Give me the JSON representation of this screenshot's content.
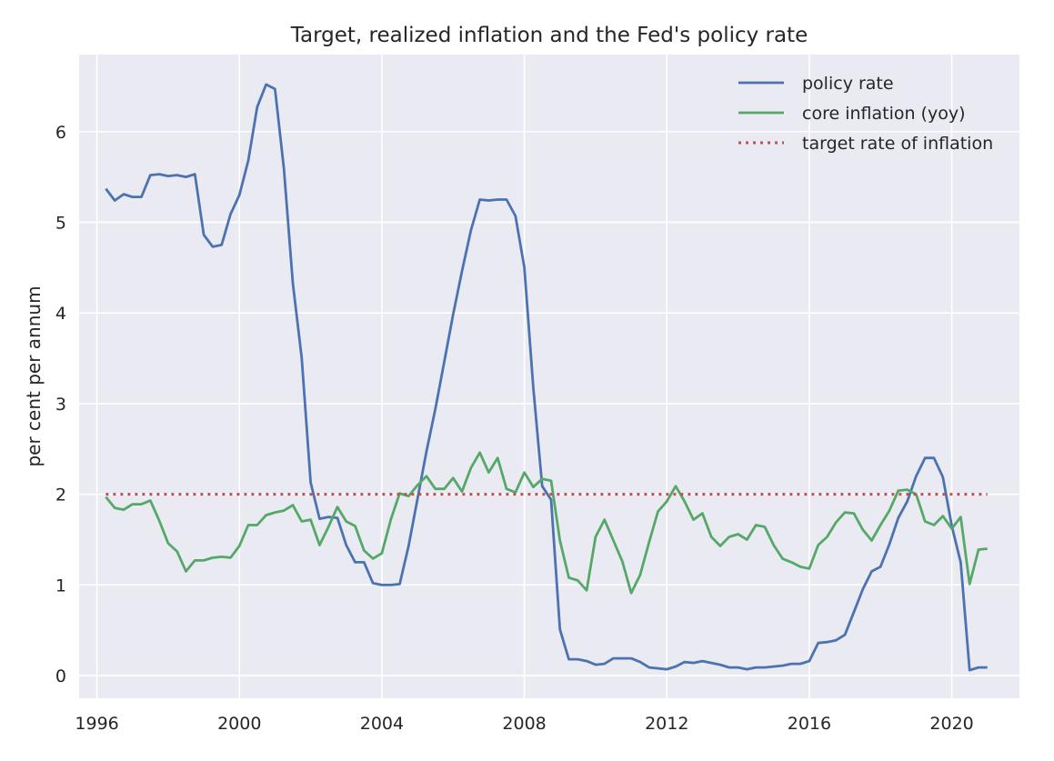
{
  "chart_data": {
    "type": "line",
    "title": "Target, realized inflation and the Fed's policy rate",
    "xlabel": "",
    "ylabel": "per cent per annum",
    "xlim": [
      1995.5,
      2021.9
    ],
    "ylim": [
      -0.25,
      6.85
    ],
    "xticks": [
      1996,
      2000,
      2004,
      2008,
      2012,
      2016,
      2020
    ],
    "yticks": [
      0,
      1,
      2,
      3,
      4,
      5,
      6
    ],
    "grid": true,
    "legend_position": "top-right",
    "colors": {
      "background": "#eaeaf2",
      "grid": "#ffffff",
      "policy": "#4c72b0",
      "core": "#55a868",
      "target": "#c44e52"
    },
    "series": [
      {
        "name": "policy rate",
        "style": "solid",
        "color": "#4c72b0",
        "points": [
          [
            1996.25,
            5.37
          ],
          [
            1996.5,
            5.24
          ],
          [
            1996.75,
            5.31
          ],
          [
            1997.0,
            5.28
          ],
          [
            1997.25,
            5.28
          ],
          [
            1997.5,
            5.52
          ],
          [
            1997.75,
            5.53
          ],
          [
            1998.0,
            5.51
          ],
          [
            1998.25,
            5.52
          ],
          [
            1998.5,
            5.5
          ],
          [
            1998.75,
            5.53
          ],
          [
            1999.0,
            4.86
          ],
          [
            1999.25,
            4.73
          ],
          [
            1999.5,
            4.75
          ],
          [
            1999.75,
            5.09
          ],
          [
            2000.0,
            5.3
          ],
          [
            2000.25,
            5.68
          ],
          [
            2000.5,
            6.27
          ],
          [
            2000.75,
            6.52
          ],
          [
            2001.0,
            6.47
          ],
          [
            2001.25,
            5.59
          ],
          [
            2001.5,
            4.33
          ],
          [
            2001.75,
            3.5
          ],
          [
            2002.0,
            2.13
          ],
          [
            2002.25,
            1.73
          ],
          [
            2002.5,
            1.75
          ],
          [
            2002.75,
            1.74
          ],
          [
            2003.0,
            1.44
          ],
          [
            2003.25,
            1.25
          ],
          [
            2003.5,
            1.25
          ],
          [
            2003.75,
            1.02
          ],
          [
            2004.0,
            1.0
          ],
          [
            2004.25,
            1.0
          ],
          [
            2004.5,
            1.01
          ],
          [
            2004.75,
            1.43
          ],
          [
            2005.0,
            1.95
          ],
          [
            2005.25,
            2.47
          ],
          [
            2005.5,
            2.94
          ],
          [
            2005.75,
            3.46
          ],
          [
            2006.0,
            3.98
          ],
          [
            2006.25,
            4.46
          ],
          [
            2006.5,
            4.91
          ],
          [
            2006.75,
            5.25
          ],
          [
            2007.0,
            5.24
          ],
          [
            2007.25,
            5.25
          ],
          [
            2007.5,
            5.25
          ],
          [
            2007.75,
            5.07
          ],
          [
            2008.0,
            4.5
          ],
          [
            2008.25,
            3.18
          ],
          [
            2008.5,
            2.09
          ],
          [
            2008.75,
            1.94
          ],
          [
            2009.0,
            0.51
          ],
          [
            2009.25,
            0.18
          ],
          [
            2009.5,
            0.18
          ],
          [
            2009.75,
            0.16
          ],
          [
            2010.0,
            0.12
          ],
          [
            2010.25,
            0.13
          ],
          [
            2010.5,
            0.19
          ],
          [
            2010.75,
            0.19
          ],
          [
            2011.0,
            0.19
          ],
          [
            2011.25,
            0.15
          ],
          [
            2011.5,
            0.09
          ],
          [
            2011.75,
            0.08
          ],
          [
            2012.0,
            0.07
          ],
          [
            2012.25,
            0.1
          ],
          [
            2012.5,
            0.15
          ],
          [
            2012.75,
            0.14
          ],
          [
            2013.0,
            0.16
          ],
          [
            2013.25,
            0.14
          ],
          [
            2013.5,
            0.12
          ],
          [
            2013.75,
            0.09
          ],
          [
            2014.0,
            0.09
          ],
          [
            2014.25,
            0.07
          ],
          [
            2014.5,
            0.09
          ],
          [
            2014.75,
            0.09
          ],
          [
            2015.0,
            0.1
          ],
          [
            2015.25,
            0.11
          ],
          [
            2015.5,
            0.13
          ],
          [
            2015.75,
            0.13
          ],
          [
            2016.0,
            0.16
          ],
          [
            2016.25,
            0.36
          ],
          [
            2016.5,
            0.37
          ],
          [
            2016.75,
            0.39
          ],
          [
            2017.0,
            0.45
          ],
          [
            2017.25,
            0.7
          ],
          [
            2017.5,
            0.95
          ],
          [
            2017.75,
            1.15
          ],
          [
            2018.0,
            1.2
          ],
          [
            2018.25,
            1.45
          ],
          [
            2018.5,
            1.74
          ],
          [
            2018.75,
            1.92
          ],
          [
            2019.0,
            2.2
          ],
          [
            2019.25,
            2.4
          ],
          [
            2019.5,
            2.4
          ],
          [
            2019.75,
            2.19
          ],
          [
            2020.0,
            1.65
          ],
          [
            2020.25,
            1.25
          ],
          [
            2020.5,
            0.06
          ],
          [
            2020.75,
            0.09
          ],
          [
            2021.0,
            0.09
          ]
        ]
      },
      {
        "name": "core inflation (yoy)",
        "style": "solid",
        "color": "#55a868",
        "points": [
          [
            1996.25,
            1.97
          ],
          [
            1996.5,
            1.85
          ],
          [
            1996.75,
            1.83
          ],
          [
            1997.0,
            1.89
          ],
          [
            1997.25,
            1.89
          ],
          [
            1997.5,
            1.93
          ],
          [
            1997.75,
            1.71
          ],
          [
            1998.0,
            1.46
          ],
          [
            1998.25,
            1.37
          ],
          [
            1998.5,
            1.15
          ],
          [
            1998.75,
            1.27
          ],
          [
            1999.0,
            1.27
          ],
          [
            1999.25,
            1.3
          ],
          [
            1999.5,
            1.31
          ],
          [
            1999.75,
            1.3
          ],
          [
            2000.0,
            1.43
          ],
          [
            2000.25,
            1.66
          ],
          [
            2000.5,
            1.66
          ],
          [
            2000.75,
            1.77
          ],
          [
            2001.0,
            1.8
          ],
          [
            2001.25,
            1.82
          ],
          [
            2001.5,
            1.88
          ],
          [
            2001.75,
            1.7
          ],
          [
            2002.0,
            1.72
          ],
          [
            2002.25,
            1.44
          ],
          [
            2002.5,
            1.64
          ],
          [
            2002.75,
            1.86
          ],
          [
            2003.0,
            1.7
          ],
          [
            2003.25,
            1.65
          ],
          [
            2003.5,
            1.38
          ],
          [
            2003.75,
            1.29
          ],
          [
            2004.0,
            1.35
          ],
          [
            2004.25,
            1.72
          ],
          [
            2004.5,
            2.01
          ],
          [
            2004.75,
            1.98
          ],
          [
            2005.0,
            2.1
          ],
          [
            2005.25,
            2.2
          ],
          [
            2005.5,
            2.06
          ],
          [
            2005.75,
            2.06
          ],
          [
            2006.0,
            2.18
          ],
          [
            2006.25,
            2.03
          ],
          [
            2006.5,
            2.29
          ],
          [
            2006.75,
            2.46
          ],
          [
            2007.0,
            2.24
          ],
          [
            2007.25,
            2.4
          ],
          [
            2007.5,
            2.06
          ],
          [
            2007.75,
            2.02
          ],
          [
            2008.0,
            2.24
          ],
          [
            2008.25,
            2.08
          ],
          [
            2008.5,
            2.17
          ],
          [
            2008.75,
            2.15
          ],
          [
            2009.0,
            1.49
          ],
          [
            2009.25,
            1.08
          ],
          [
            2009.5,
            1.05
          ],
          [
            2009.75,
            0.94
          ],
          [
            2010.0,
            1.53
          ],
          [
            2010.25,
            1.72
          ],
          [
            2010.5,
            1.49
          ],
          [
            2010.75,
            1.26
          ],
          [
            2011.0,
            0.91
          ],
          [
            2011.25,
            1.11
          ],
          [
            2011.5,
            1.47
          ],
          [
            2011.75,
            1.81
          ],
          [
            2012.0,
            1.92
          ],
          [
            2012.25,
            2.09
          ],
          [
            2012.5,
            1.92
          ],
          [
            2012.75,
            1.72
          ],
          [
            2013.0,
            1.79
          ],
          [
            2013.25,
            1.53
          ],
          [
            2013.5,
            1.43
          ],
          [
            2013.75,
            1.53
          ],
          [
            2014.0,
            1.56
          ],
          [
            2014.25,
            1.5
          ],
          [
            2014.5,
            1.66
          ],
          [
            2014.75,
            1.64
          ],
          [
            2015.0,
            1.44
          ],
          [
            2015.25,
            1.29
          ],
          [
            2015.5,
            1.25
          ],
          [
            2015.75,
            1.2
          ],
          [
            2016.0,
            1.18
          ],
          [
            2016.25,
            1.44
          ],
          [
            2016.5,
            1.53
          ],
          [
            2016.75,
            1.69
          ],
          [
            2017.0,
            1.8
          ],
          [
            2017.25,
            1.79
          ],
          [
            2017.5,
            1.61
          ],
          [
            2017.75,
            1.49
          ],
          [
            2018.0,
            1.66
          ],
          [
            2018.25,
            1.82
          ],
          [
            2018.5,
            2.04
          ],
          [
            2018.75,
            2.05
          ],
          [
            2019.0,
            2.0
          ],
          [
            2019.25,
            1.7
          ],
          [
            2019.5,
            1.66
          ],
          [
            2019.75,
            1.76
          ],
          [
            2020.0,
            1.62
          ],
          [
            2020.25,
            1.75
          ],
          [
            2020.5,
            1.01
          ],
          [
            2020.75,
            1.39
          ],
          [
            2021.0,
            1.4
          ]
        ]
      },
      {
        "name": "target rate of inflation",
        "style": "dotted",
        "color": "#c44e52",
        "points": [
          [
            1996.25,
            2.0
          ],
          [
            2021.0,
            2.0
          ]
        ]
      }
    ]
  }
}
